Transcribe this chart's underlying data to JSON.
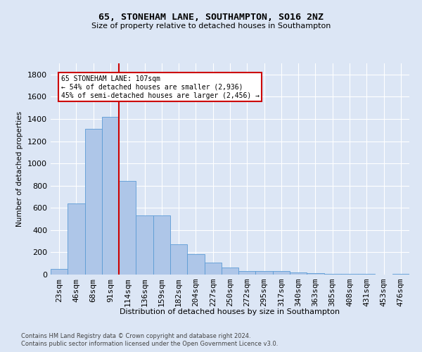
{
  "title1": "65, STONEHAM LANE, SOUTHAMPTON, SO16 2NZ",
  "title2": "Size of property relative to detached houses in Southampton",
  "xlabel": "Distribution of detached houses by size in Southampton",
  "ylabel": "Number of detached properties",
  "bar_color": "#aec6e8",
  "bar_edge_color": "#5b9bd5",
  "categories": [
    "23sqm",
    "46sqm",
    "68sqm",
    "91sqm",
    "114sqm",
    "136sqm",
    "159sqm",
    "182sqm",
    "204sqm",
    "227sqm",
    "250sqm",
    "272sqm",
    "295sqm",
    "317sqm",
    "340sqm",
    "363sqm",
    "385sqm",
    "408sqm",
    "431sqm",
    "453sqm",
    "476sqm"
  ],
  "values": [
    50,
    640,
    1310,
    1420,
    840,
    530,
    530,
    270,
    185,
    105,
    65,
    32,
    32,
    30,
    20,
    15,
    8,
    5,
    5,
    3,
    5
  ],
  "vline_color": "#cc0000",
  "ylim": [
    0,
    1900
  ],
  "yticks": [
    0,
    200,
    400,
    600,
    800,
    1000,
    1200,
    1400,
    1600,
    1800
  ],
  "annotation_text": "65 STONEHAM LANE: 107sqm\n← 54% of detached houses are smaller (2,936)\n45% of semi-detached houses are larger (2,456) →",
  "annotation_box_color": "#ffffff",
  "annotation_box_edge": "#cc0000",
  "footer1": "Contains HM Land Registry data © Crown copyright and database right 2024.",
  "footer2": "Contains public sector information licensed under the Open Government Licence v3.0.",
  "background_color": "#dce6f5",
  "grid_color": "#ffffff"
}
